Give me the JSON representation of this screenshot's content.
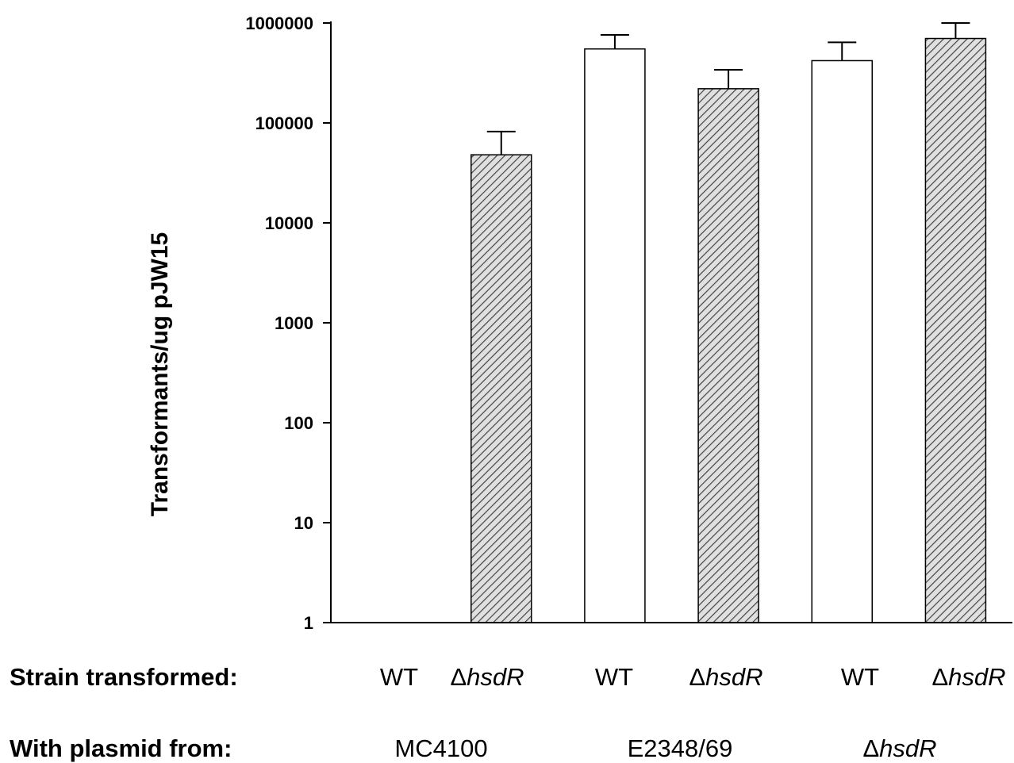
{
  "chart_data": {
    "type": "bar",
    "title": "",
    "xlabel": "",
    "ylabel": "Transformants/ug pJW15",
    "yscale": "log",
    "ylim": [
      1,
      1000000
    ],
    "yticks": [
      "1",
      "10",
      "100",
      "1000",
      "10000",
      "100000",
      "1000000"
    ],
    "grid": false,
    "legend": "none",
    "categories": [
      "WT",
      "ΔhsdR",
      "WT",
      "ΔhsdR",
      "WT",
      "ΔhsdR"
    ],
    "values": [
      1,
      48000,
      550000,
      220000,
      420000,
      700000
    ],
    "error_upper": [
      null,
      82000,
      760000,
      340000,
      640000,
      1000000
    ],
    "fill": [
      "none",
      "hatched",
      "open",
      "hatched",
      "open",
      "hatched"
    ],
    "colors": {
      "bar_open": "#ffffff",
      "bar_hatch_line": "#444444",
      "bar_hatch_bg": "#e0e0e0",
      "stroke": "#000000"
    }
  },
  "rows": {
    "strain": {
      "title": "Strain transformed:",
      "cells": [
        {
          "prefix": "",
          "text": "WT"
        },
        {
          "prefix": "Δ",
          "text": "hsdR"
        },
        {
          "prefix": "",
          "text": "WT"
        },
        {
          "prefix": "Δ",
          "text": "hsdR"
        },
        {
          "prefix": "",
          "text": "WT"
        },
        {
          "prefix": "Δ",
          "text": "hsdR"
        }
      ]
    },
    "plasmid": {
      "title": "With plasmid from:",
      "groups": [
        {
          "prefix": "",
          "text": "MC4100"
        },
        {
          "prefix": "",
          "text": "E2348/69"
        },
        {
          "prefix": "Δ",
          "text": "hsdR"
        }
      ]
    }
  }
}
